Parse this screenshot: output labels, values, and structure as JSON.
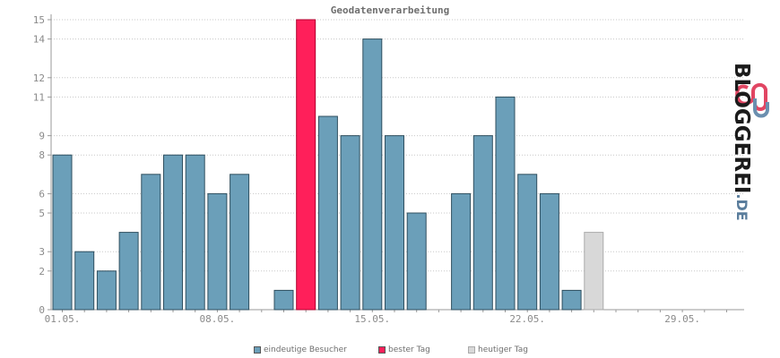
{
  "chart_data": {
    "type": "bar",
    "title": "Geodatenverarbeitung",
    "x_tick_labels": [
      "01.05.",
      "08.05.",
      "15.05.",
      "22.05.",
      "29.05."
    ],
    "y_tick_labels": [
      "0",
      "2",
      "3",
      "5",
      "6",
      "8",
      "9",
      "11",
      "12",
      "14",
      "15"
    ],
    "ylim": [
      0,
      15
    ],
    "grid": true,
    "categories": [
      "01.05.",
      "02.05.",
      "03.05.",
      "04.05.",
      "05.05.",
      "06.05.",
      "07.05.",
      "08.05.",
      "09.05.",
      "10.05.",
      "11.05.",
      "12.05.",
      "13.05.",
      "14.05.",
      "15.05.",
      "16.05.",
      "17.05.",
      "18.05.",
      "19.05.",
      "20.05.",
      "21.05.",
      "22.05.",
      "23.05.",
      "24.05.",
      "25.05.",
      "26.05.",
      "27.05.",
      "28.05.",
      "29.05.",
      "30.05.",
      "31.05."
    ],
    "values": [
      8,
      3,
      2,
      4,
      7,
      8,
      8,
      6,
      7,
      0,
      1,
      15,
      10,
      9,
      14,
      9,
      5,
      0,
      6,
      9,
      11,
      7,
      6,
      1,
      4,
      0,
      0,
      0,
      0,
      0,
      0
    ],
    "best_day_index": 11,
    "today_index": 24,
    "series": [
      {
        "name": "eindeutige Besucher",
        "color": "#6b9fb9"
      },
      {
        "name": "bester Tag",
        "color": "#ff1f5a"
      },
      {
        "name": "heutiger Tag",
        "color": "#d8d8d8"
      }
    ],
    "legend_position": "bottom"
  },
  "logo": {
    "text": "BLOGGEREI",
    "suffix": ".DE"
  }
}
